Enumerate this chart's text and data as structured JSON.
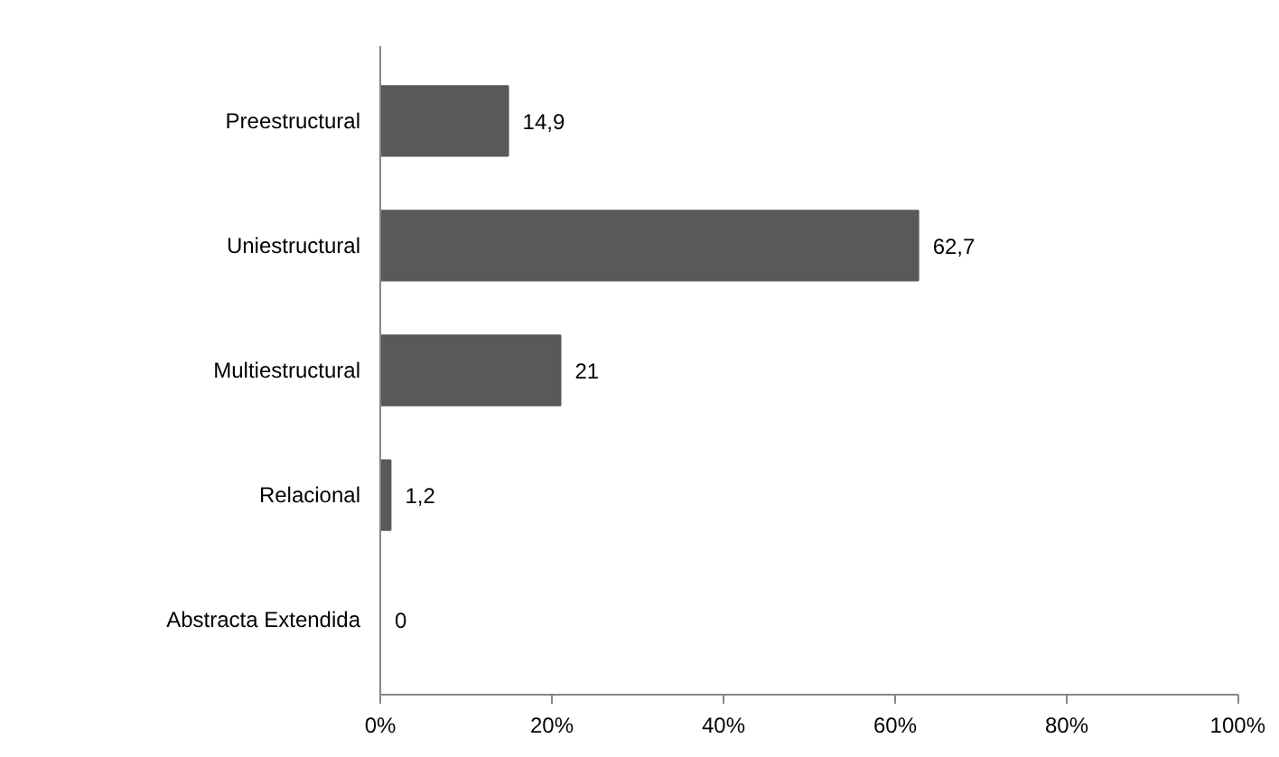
{
  "chart_data": {
    "type": "bar",
    "orientation": "horizontal",
    "categories": [
      "Preestructural",
      "Uniestructural",
      "Multiestructural",
      "Relacional",
      "Abstracta Extendida"
    ],
    "values": [
      14.9,
      62.7,
      21,
      1.2,
      0
    ],
    "value_labels": [
      "14,9",
      "62,7",
      "21",
      "1,2",
      "0"
    ],
    "color": "#595959",
    "xlim": [
      0,
      100
    ],
    "xticks": [
      {
        "value": 0,
        "label": "0%"
      },
      {
        "value": 20,
        "label": "20%"
      },
      {
        "value": 40,
        "label": "40%"
      },
      {
        "value": 60,
        "label": "60%"
      },
      {
        "value": 80,
        "label": "80%"
      },
      {
        "value": 100,
        "label": "100%"
      }
    ],
    "grid": false
  }
}
